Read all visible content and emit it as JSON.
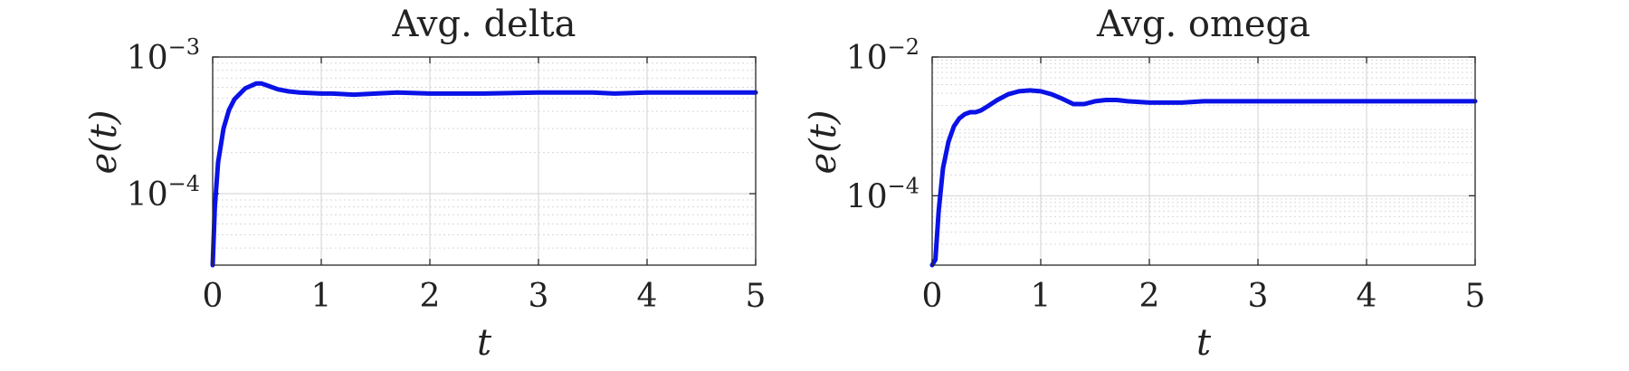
{
  "colors": {
    "line": "#0a12e6"
  },
  "chart_data": [
    {
      "type": "line",
      "title": "Avg. delta",
      "xlabel": "t",
      "ylabel": "e(t)",
      "xlim": [
        0,
        5
      ],
      "ylim": [
        3e-05,
        0.001
      ],
      "yscale": "log",
      "grid": true,
      "xticks": [
        "0",
        "1",
        "2",
        "3",
        "4",
        "5"
      ],
      "yticks": [
        {
          "value": 0.0001,
          "base": "10",
          "exp": "−4"
        },
        {
          "value": 0.001,
          "base": "10",
          "exp": "−3"
        }
      ],
      "series": [
        {
          "x": [
            0,
            0.02,
            0.05,
            0.1,
            0.15,
            0.2,
            0.3,
            0.4,
            0.45,
            0.5,
            0.6,
            0.7,
            0.8,
            1.0,
            1.1,
            1.3,
            1.5,
            1.7,
            2.0,
            2.5,
            3.0,
            3.5,
            3.7,
            4.0,
            4.5,
            5.0
          ],
          "y": [
            3e-05,
            8e-05,
            0.00017,
            0.0003,
            0.00041,
            0.00049,
            0.00059,
            0.00064,
            0.00064,
            0.00062,
            0.00058,
            0.00056,
            0.00055,
            0.00054,
            0.00054,
            0.00053,
            0.00054,
            0.00055,
            0.00054,
            0.00054,
            0.00055,
            0.00055,
            0.00054,
            0.00055,
            0.00055,
            0.00055
          ]
        }
      ]
    },
    {
      "type": "line",
      "title": "Avg. omega",
      "xlabel": "t",
      "ylabel": "e(t)",
      "xlim": [
        0,
        5
      ],
      "ylim": [
        1e-05,
        0.01
      ],
      "yscale": "log",
      "grid": true,
      "xticks": [
        "0",
        "1",
        "2",
        "3",
        "4",
        "5"
      ],
      "yticks": [
        {
          "value": 0.0001,
          "base": "10",
          "exp": "−4"
        },
        {
          "value": 0.01,
          "base": "10",
          "exp": "−2"
        }
      ],
      "series": [
        {
          "x": [
            0,
            0.03,
            0.06,
            0.1,
            0.15,
            0.2,
            0.25,
            0.3,
            0.35,
            0.4,
            0.45,
            0.5,
            0.6,
            0.7,
            0.8,
            0.9,
            1.0,
            1.1,
            1.2,
            1.3,
            1.4,
            1.5,
            1.6,
            1.7,
            1.8,
            2.0,
            2.3,
            2.5,
            3.0,
            3.5,
            4.0,
            4.5,
            5.0
          ],
          "y": [
            1e-05,
            1.2e-05,
            6e-05,
            0.00025,
            0.0006,
            0.001,
            0.0013,
            0.0015,
            0.0016,
            0.0016,
            0.0017,
            0.0019,
            0.0024,
            0.0029,
            0.0032,
            0.0033,
            0.0032,
            0.0029,
            0.0025,
            0.0021,
            0.0021,
            0.0023,
            0.0024,
            0.0024,
            0.0023,
            0.0022,
            0.0022,
            0.0023,
            0.0023,
            0.0023,
            0.0023,
            0.0023,
            0.0023
          ]
        }
      ]
    }
  ]
}
